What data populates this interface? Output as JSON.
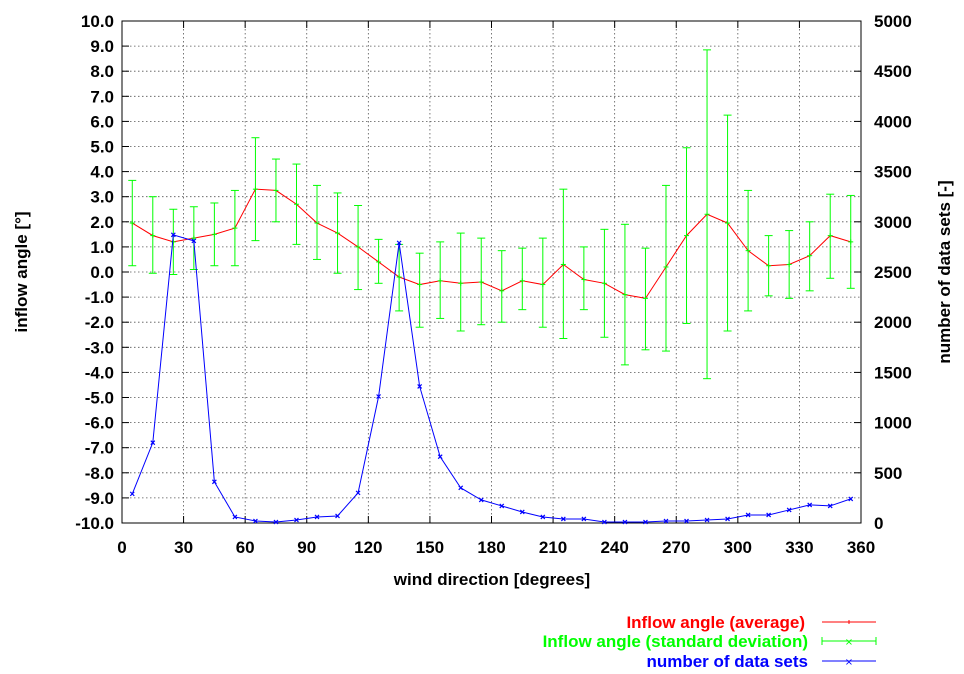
{
  "chart_data": {
    "type": "line",
    "xlabel": "wind direction [degrees]",
    "ylabel": "inflow angle [°]",
    "y2label": "number of data sets [-]",
    "xlim": [
      0,
      360
    ],
    "ylim": [
      -10,
      10
    ],
    "y2lim": [
      0,
      5000
    ],
    "grid": true,
    "legend_position": "bottom-right",
    "x_ticks": [
      "0",
      "30",
      "60",
      "90",
      "120",
      "150",
      "180",
      "210",
      "240",
      "270",
      "300",
      "330",
      "360"
    ],
    "y_ticks": [
      "10.0",
      "9.0",
      "8.0",
      "7.0",
      "6.0",
      "5.0",
      "4.0",
      "3.0",
      "2.0",
      "1.0",
      "0.0",
      "-1.0",
      "-2.0",
      "-3.0",
      "-4.0",
      "-5.0",
      "-6.0",
      "-7.0",
      "-8.0",
      "-9.0",
      "-10.0"
    ],
    "y2_ticks": [
      "5000",
      "4500",
      "4000",
      "3500",
      "3000",
      "2500",
      "2000",
      "1500",
      "1000",
      "500",
      "0"
    ],
    "x": [
      5,
      15,
      25,
      35,
      45,
      55,
      65,
      75,
      85,
      95,
      105,
      115,
      125,
      135,
      145,
      155,
      165,
      175,
      185,
      195,
      205,
      215,
      225,
      235,
      245,
      255,
      265,
      275,
      285,
      295,
      305,
      315,
      325,
      335,
      345,
      355
    ],
    "series": [
      {
        "name": "Inflow angle (average)",
        "color": "#ff0000",
        "axis": "left",
        "values": [
          1.95,
          1.45,
          1.2,
          1.35,
          1.5,
          1.75,
          3.3,
          3.25,
          2.7,
          1.95,
          1.55,
          1.0,
          0.4,
          -0.2,
          -0.5,
          -0.35,
          -0.45,
          -0.4,
          -0.75,
          -0.35,
          -0.5,
          0.3,
          -0.3,
          -0.45,
          -0.9,
          -1.05,
          0.2,
          1.45,
          2.3,
          1.95,
          0.85,
          0.25,
          0.3,
          0.65,
          1.45,
          1.2
        ]
      },
      {
        "name": "Inflow angle (standard deviation)",
        "color": "#00ff00",
        "axis": "left",
        "low": [
          0.25,
          -0.05,
          -0.1,
          0.1,
          0.25,
          0.25,
          1.25,
          2.0,
          1.1,
          0.5,
          -0.05,
          -0.7,
          -0.45,
          -1.55,
          -2.2,
          -1.85,
          -2.35,
          -2.1,
          -2.0,
          -1.5,
          -2.2,
          -2.65,
          -1.5,
          -2.6,
          -3.7,
          -3.1,
          -3.15,
          -2.05,
          -4.25,
          -2.35,
          -1.55,
          -0.95,
          -1.05,
          -0.75,
          -0.25,
          -0.65
        ],
        "high": [
          3.65,
          3.0,
          2.5,
          2.6,
          2.75,
          3.25,
          5.35,
          4.5,
          4.3,
          3.45,
          3.15,
          2.65,
          1.3,
          1.1,
          0.75,
          1.2,
          1.55,
          1.35,
          0.85,
          0.95,
          1.35,
          3.3,
          1.0,
          1.7,
          1.9,
          0.95,
          3.45,
          4.95,
          8.85,
          6.25,
          3.25,
          1.45,
          1.65,
          2.0,
          3.1,
          3.05
        ]
      },
      {
        "name": "number of data sets",
        "color": "#0000ff",
        "axis": "right",
        "values": [
          290,
          800,
          2870,
          2810,
          410,
          60,
          20,
          10,
          30,
          60,
          70,
          300,
          1260,
          2790,
          1360,
          660,
          350,
          230,
          170,
          110,
          60,
          40,
          40,
          10,
          10,
          10,
          20,
          20,
          30,
          40,
          80,
          80,
          130,
          180,
          170,
          240
        ]
      }
    ]
  }
}
